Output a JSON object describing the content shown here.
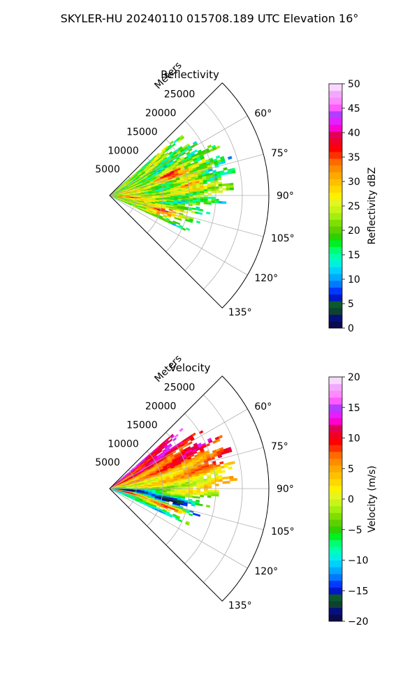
{
  "figure": {
    "suptitle": "SKYLER-HU  20240110  015708.189 UTC Elevation 16°"
  },
  "chart_data": [
    {
      "type": "heatmap",
      "title": "Reflectivity",
      "range_axis_label": "Meters",
      "range_ticks": [
        "5000",
        "10000",
        "15000",
        "20000",
        "25000"
      ],
      "range_ticks_values": [
        5000,
        10000,
        15000,
        20000,
        25000
      ],
      "range_max": 30000,
      "azimuth_ticks": [
        "60°",
        "75°",
        "90°",
        "105°",
        "120°",
        "135°"
      ],
      "azimuth_ticks_values": [
        60,
        75,
        90,
        105,
        120,
        135
      ],
      "azimuth_range": [
        45,
        135
      ],
      "grid": true,
      "colorbar": {
        "label": "Reflectivity dBZ",
        "min": 0,
        "max": 50,
        "ticks": [
          "0",
          "5",
          "10",
          "15",
          "20",
          "25",
          "30",
          "35",
          "40",
          "45",
          "50"
        ],
        "tick_values": [
          0,
          5,
          10,
          15,
          20,
          25,
          30,
          35,
          40,
          45,
          50
        ],
        "colors": [
          "#0b0a4f",
          "#05107a",
          "#0e4132",
          "#0b5a2c",
          "#0018c8",
          "#0038ff",
          "#0078ff",
          "#00a8ff",
          "#00d0ff",
          "#00f0e0",
          "#00ffb0",
          "#00ff70",
          "#00f020",
          "#2ed000",
          "#5cd000",
          "#7ee000",
          "#a4ee10",
          "#c8f418",
          "#e4f520",
          "#fff000",
          "#ffd800",
          "#ffc000",
          "#ffa800",
          "#ff8c00",
          "#ff6a00",
          "#ff3000",
          "#ff0000",
          "#f00028",
          "#e0005a",
          "#ff00d2",
          "#e020ff",
          "#b43cff",
          "#ff5aff",
          "#ff8aff",
          "#f2a8ff",
          "#f8d8ff"
        ]
      }
    },
    {
      "type": "heatmap",
      "title": "Velocity",
      "range_axis_label": "Meters",
      "range_ticks": [
        "5000",
        "10000",
        "15000",
        "20000",
        "25000"
      ],
      "range_ticks_values": [
        5000,
        10000,
        15000,
        20000,
        25000
      ],
      "range_max": 30000,
      "azimuth_ticks": [
        "60°",
        "75°",
        "90°",
        "105°",
        "120°",
        "135°"
      ],
      "azimuth_ticks_values": [
        60,
        75,
        90,
        105,
        120,
        135
      ],
      "azimuth_range": [
        45,
        135
      ],
      "grid": true,
      "colorbar": {
        "label": "Velocity (m/s)",
        "min": -20,
        "max": 20,
        "ticks": [
          "−20",
          "−15",
          "−10",
          "−5",
          "0",
          "5",
          "10",
          "15",
          "20"
        ],
        "tick_values": [
          -20,
          -15,
          -10,
          -5,
          0,
          5,
          10,
          15,
          20
        ],
        "colors": [
          "#0b0a4f",
          "#05107a",
          "#0e4132",
          "#0b5a2c",
          "#0018c8",
          "#0038ff",
          "#0078ff",
          "#00a8ff",
          "#00d0ff",
          "#00f0e0",
          "#00ffb0",
          "#00ff70",
          "#00f020",
          "#2ed000",
          "#5cd000",
          "#7ee000",
          "#a4ee10",
          "#c8f418",
          "#e4f520",
          "#fff000",
          "#ffd800",
          "#ffc000",
          "#ffa800",
          "#ff8c00",
          "#ff6a00",
          "#ff3000",
          "#ff0000",
          "#f00028",
          "#e0005a",
          "#ff00d2",
          "#e020ff",
          "#b43cff",
          "#ff5aff",
          "#ff8aff",
          "#f2a8ff",
          "#f8d8ff"
        ]
      }
    }
  ]
}
